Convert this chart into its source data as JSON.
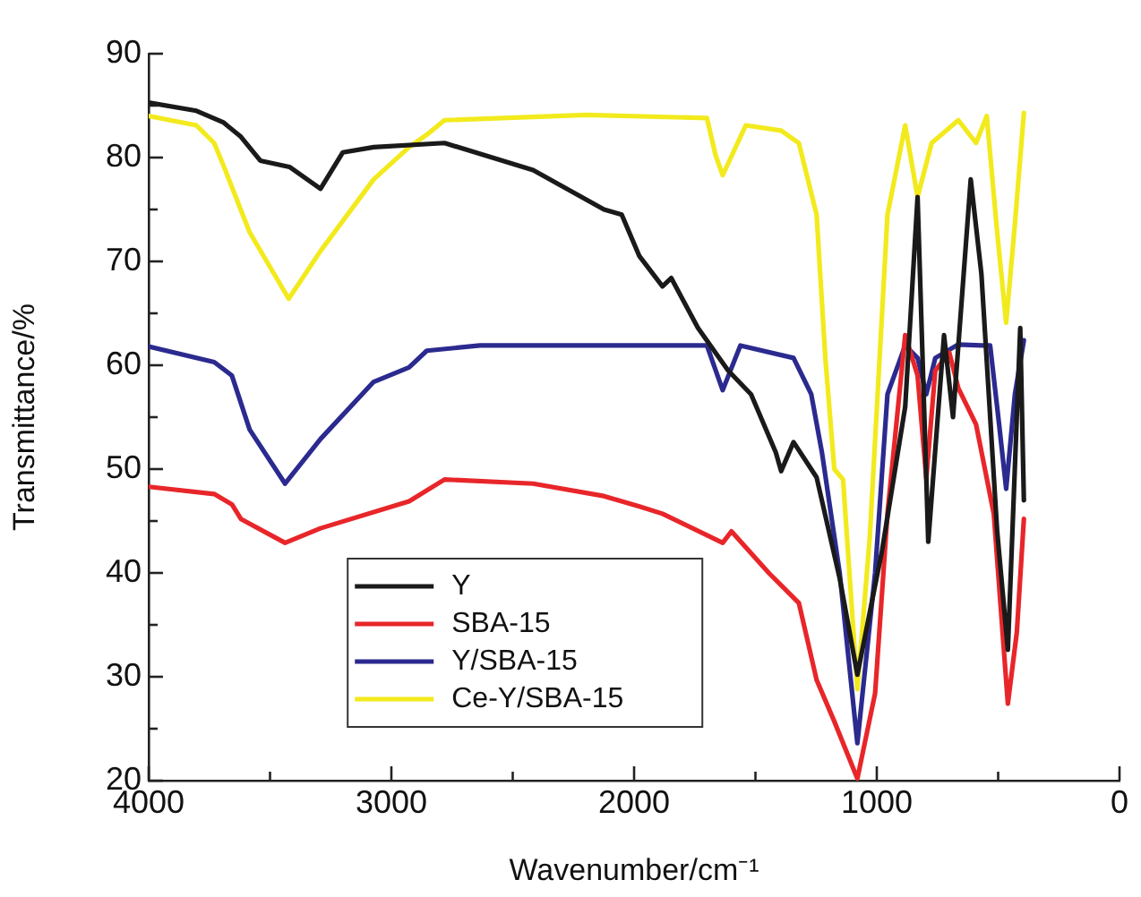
{
  "chart_data": {
    "type": "line",
    "xlabel": "Wavenumber/cm⁻¹",
    "ylabel": "Transmittance/%",
    "xlim": [
      4000,
      0
    ],
    "xticks": [
      4000,
      {
        "value": 3500,
        "label": null
      },
      3000,
      {
        "value": 2500,
        "label": null
      },
      2000,
      {
        "value": 1500,
        "label": null
      },
      1000,
      {
        "value": 500,
        "label": null
      },
      0
    ],
    "ylim": [
      20,
      90
    ],
    "yticks": [
      20,
      {
        "value": 25,
        "label": null
      },
      30,
      {
        "value": 35,
        "label": null
      },
      40,
      {
        "value": 45,
        "label": null
      },
      50,
      {
        "value": 55,
        "label": null
      },
      60,
      {
        "value": 65,
        "label": null
      },
      70,
      {
        "value": 75,
        "label": null
      },
      80,
      {
        "value": 85,
        "label": null
      },
      90
    ],
    "grid": false,
    "legend": "bottom",
    "marker": "none",
    "line_style": "solid",
    "series": [
      {
        "name": "Y",
        "color": "#1a1a1a",
        "x": [
          4000,
          3803,
          3693,
          3620,
          3540,
          3420,
          3292,
          3200,
          3073,
          2781,
          2416,
          2124,
          2051,
          1978,
          1883,
          1847,
          1737,
          1613,
          1518,
          1416,
          1394,
          1343,
          1248,
          1153,
          1080,
          978,
          883,
          832,
          788,
          723,
          686,
          613,
          569,
          504,
          460,
          409,
          394
        ],
        "values": [
          85.3,
          84.5,
          83.4,
          82,
          79.7,
          79.1,
          77,
          80.5,
          81,
          81.4,
          78.8,
          75,
          74.5,
          70.5,
          67.6,
          68.4,
          63.6,
          59.5,
          57.2,
          51.6,
          49.8,
          52.6,
          49.2,
          39.5,
          30.2,
          42.2,
          56,
          76.2,
          43,
          62.9,
          55,
          77.9,
          68.8,
          44,
          32.6,
          63.6,
          47
        ]
      },
      {
        "name": "SBA-15",
        "color": "#e8262a",
        "x": [
          4000,
          3730,
          3657,
          3620,
          3438,
          3292,
          2927,
          2781,
          2416,
          2124,
          1978,
          1883,
          1635,
          1599,
          1445,
          1321,
          1248,
          1175,
          1080,
          1007,
          956,
          883,
          832,
          796,
          759,
          701,
          664,
          591,
          518,
          460,
          423,
          394
        ],
        "values": [
          48.3,
          47.6,
          46.6,
          45.2,
          42.9,
          44.3,
          46.9,
          49,
          48.6,
          47.4,
          46.4,
          45.7,
          42.9,
          44,
          40,
          37.1,
          29.7,
          25.7,
          20.2,
          28.4,
          45.7,
          62.9,
          59,
          49.1,
          59.5,
          61.2,
          57.8,
          54.3,
          45.7,
          27.4,
          34.3,
          45.2
        ]
      },
      {
        "name": "Y/SBA-15",
        "color": "#2b2a8f",
        "x": [
          4000,
          3730,
          3657,
          3584,
          3438,
          3292,
          3073,
          2927,
          2854,
          2635,
          2197,
          1700,
          1635,
          1562,
          1343,
          1270,
          1226,
          1153,
          1080,
          1007,
          956,
          883,
          832,
          796,
          759,
          664,
          569,
          533,
          496,
          467,
          431,
          394
        ],
        "values": [
          61.8,
          60.3,
          59,
          53.8,
          48.6,
          52.9,
          58.4,
          59.8,
          61.4,
          61.9,
          61.9,
          61.9,
          57.6,
          61.9,
          60.7,
          57.2,
          51.6,
          40,
          23.6,
          40,
          57.2,
          61.9,
          60.7,
          57.2,
          60.7,
          62,
          61.9,
          61.9,
          54.3,
          48.1,
          57.2,
          62.4
        ]
      },
      {
        "name": "Ce-Y/SBA-15",
        "color": "#f2ea1c",
        "x": [
          4000,
          3803,
          3730,
          3693,
          3584,
          3423,
          3292,
          3073,
          2927,
          2854,
          2781,
          2197,
          1700,
          1664,
          1635,
          1540,
          1394,
          1321,
          1248,
          1212,
          1175,
          1139,
          1080,
          1029,
          956,
          883,
          832,
          774,
          664,
          591,
          547,
          504,
          467,
          431,
          394
        ],
        "values": [
          84,
          83.1,
          81.4,
          79.3,
          72.8,
          66.4,
          71,
          77.9,
          81,
          82.2,
          83.6,
          84.1,
          83.8,
          80.2,
          78.3,
          83.1,
          82.6,
          81.4,
          74.5,
          60.7,
          50,
          49,
          28.8,
          43.4,
          74.5,
          83.1,
          76.2,
          81.4,
          83.6,
          81.4,
          84,
          72.8,
          64.1,
          73.6,
          84.3
        ]
      }
    ]
  }
}
